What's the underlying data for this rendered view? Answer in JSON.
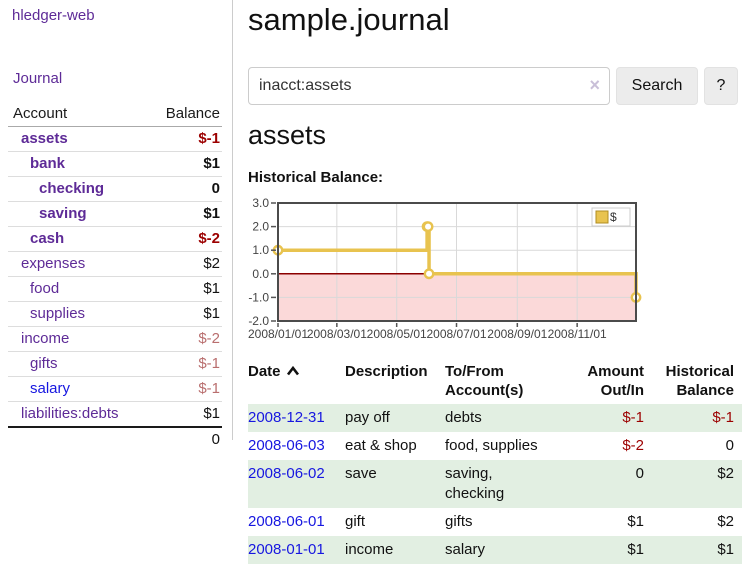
{
  "sidebar": {
    "app_title": "hledger-web",
    "journal_link": "Journal",
    "table": {
      "account_header": "Account",
      "balance_header": "Balance",
      "total": "0"
    },
    "accounts": [
      {
        "name": "assets",
        "balance": "$-1"
      },
      {
        "name": "bank",
        "balance": "$1"
      },
      {
        "name": "checking",
        "balance": "0"
      },
      {
        "name": "saving",
        "balance": "$1"
      },
      {
        "name": "cash",
        "balance": "$-2"
      },
      {
        "name": "expenses",
        "balance": "$2"
      },
      {
        "name": "food",
        "balance": "$1"
      },
      {
        "name": "supplies",
        "balance": "$1"
      },
      {
        "name": "income",
        "balance": "$-2"
      },
      {
        "name": "gifts",
        "balance": "$-1"
      },
      {
        "name": "salary",
        "balance": "$-1"
      },
      {
        "name": "liabilities:debts",
        "balance": "$1"
      }
    ]
  },
  "main": {
    "title": "sample.journal",
    "search": {
      "value": "inacct:assets",
      "clear_icon": "×",
      "search_button": "Search",
      "help_button": "?"
    },
    "account_heading": "assets",
    "chart_heading": "Historical Balance:"
  },
  "register": {
    "headers": {
      "date": "Date",
      "description": "Description",
      "tofrom_line1": "To/From",
      "tofrom_line2": "Account(s)",
      "amount_line1": "Amount",
      "amount_line2": "Out/In",
      "balance_line1": "Historical",
      "balance_line2": "Balance"
    },
    "rows": [
      {
        "date": "2008-12-31",
        "description": "pay off",
        "accounts": "debts",
        "amount": "$-1",
        "balance": "$-1"
      },
      {
        "date": "2008-06-03",
        "description": "eat & shop",
        "accounts": "food, supplies",
        "amount": "$-2",
        "balance": "0"
      },
      {
        "date": "2008-06-02",
        "description": "save",
        "accounts": "saving, checking",
        "amount": "0",
        "balance": "$2"
      },
      {
        "date": "2008-06-01",
        "description": "gift",
        "accounts": "gifts",
        "amount": "$1",
        "balance": "$2"
      },
      {
        "date": "2008-01-01",
        "description": "income",
        "accounts": "salary",
        "amount": "$1",
        "balance": "$1"
      }
    ]
  },
  "chart_data": {
    "type": "line",
    "step": true,
    "title": "Historical Balance:",
    "xlabel": "",
    "ylabel": "",
    "x_start": "2008-01-01",
    "x_end": "2008-12-31",
    "ylim": [
      -2,
      3
    ],
    "y_ticks": [
      3,
      2,
      1,
      0,
      -1,
      -2
    ],
    "x_ticks": [
      {
        "date": "2008-01-01",
        "label": "2008/01/01"
      },
      {
        "date": "2008-03-01",
        "label": "2008/03/01"
      },
      {
        "date": "2008-05-01",
        "label": "2008/05/01"
      },
      {
        "date": "2008-07-01",
        "label": "2008/07/01"
      },
      {
        "date": "2008-09-01",
        "label": "2008/09/01"
      },
      {
        "date": "2008-11-01",
        "label": "2008/11/01"
      }
    ],
    "legend": [
      {
        "label": "$",
        "color": "#e8c34f"
      }
    ],
    "series": [
      {
        "name": "$",
        "points": [
          [
            "2008-01-01",
            1
          ],
          [
            "2008-06-01",
            2
          ],
          [
            "2008-06-02",
            2
          ],
          [
            "2008-06-03",
            0
          ],
          [
            "2008-12-31",
            -1
          ]
        ]
      }
    ],
    "colors": {
      "line": "#e8c34f",
      "marker_fill": "#ffffff",
      "negative_region": "#fbd9d9",
      "zero_line": "#8b0000",
      "grid": "#d9d9d9",
      "border": "#4b4b4b",
      "tick": "#555555",
      "label": "#444444"
    }
  }
}
